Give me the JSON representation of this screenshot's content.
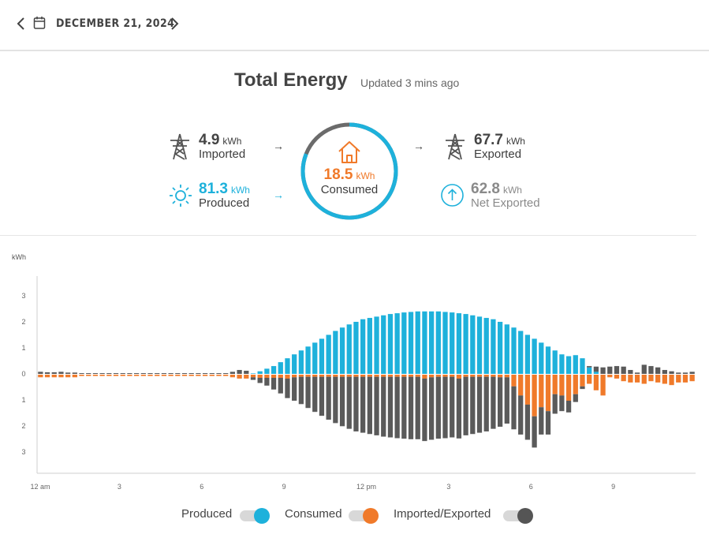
{
  "header": {
    "date": "DECEMBER 21, 2024"
  },
  "title": "Total Energy",
  "updated": "Updated 3 mins ago",
  "stats": {
    "imported": {
      "value": "4.9",
      "unit": "kWh",
      "label": "Imported"
    },
    "produced": {
      "value": "81.3",
      "unit": "kWh",
      "label": "Produced"
    },
    "consumed": {
      "value": "18.5",
      "unit": "kWh",
      "label": "Consumed"
    },
    "exported": {
      "value": "67.7",
      "unit": "kWh",
      "label": "Exported"
    },
    "net_exported": {
      "value": "62.8",
      "unit": "kWh",
      "label": "Net Exported"
    }
  },
  "ring": {
    "produced_fraction": 0.81,
    "imported_fraction": 0.19
  },
  "legend": [
    {
      "label": "Produced",
      "color": "#1eb1db"
    },
    {
      "label": "Consumed",
      "color": "#f07a2a"
    },
    {
      "label": "Imported/Exported",
      "color": "#555555"
    }
  ],
  "colors": {
    "produced": "#1eb1db",
    "consumed": "#f07a2a",
    "grid": "#5a5a5a",
    "text": "#3d3d3d"
  },
  "chart_data": {
    "type": "bar",
    "ylabel": "kWh",
    "ylim": [
      -3.8,
      3.8
    ],
    "yticks": [
      {
        "v": 3,
        "label": "3"
      },
      {
        "v": 2,
        "label": "2"
      },
      {
        "v": 1,
        "label": "1"
      },
      {
        "v": 0,
        "label": "0"
      },
      {
        "v": -1,
        "label": "1"
      },
      {
        "v": -2,
        "label": "2"
      },
      {
        "v": -3,
        "label": "3"
      }
    ],
    "xticks": [
      {
        "h": 0,
        "label": "12 am"
      },
      {
        "h": 3,
        "label": "3"
      },
      {
        "h": 6,
        "label": "6"
      },
      {
        "h": 9,
        "label": "9"
      },
      {
        "h": 12,
        "label": "12 pm"
      },
      {
        "h": 15,
        "label": "3"
      },
      {
        "h": 18,
        "label": "6"
      },
      {
        "h": 21,
        "label": "9"
      }
    ],
    "interval_minutes": 15,
    "series": [
      {
        "name": "Produced",
        "values": [
          0,
          0,
          0,
          0,
          0,
          0,
          0,
          0,
          0,
          0,
          0,
          0,
          0,
          0,
          0,
          0,
          0,
          0,
          0,
          0,
          0,
          0,
          0,
          0,
          0,
          0,
          0,
          0,
          0,
          0,
          0,
          0.02,
          0.1,
          0.2,
          0.3,
          0.45,
          0.6,
          0.75,
          0.9,
          1.05,
          1.2,
          1.35,
          1.5,
          1.65,
          1.78,
          1.9,
          2.0,
          2.1,
          2.15,
          2.2,
          2.25,
          2.3,
          2.33,
          2.36,
          2.38,
          2.4,
          2.4,
          2.4,
          2.4,
          2.38,
          2.36,
          2.33,
          2.3,
          2.25,
          2.2,
          2.15,
          2.1,
          2.0,
          1.9,
          1.78,
          1.65,
          1.5,
          1.35,
          1.2,
          1.05,
          0.9,
          0.75,
          0.68,
          0.72,
          0.6,
          0.25,
          0.08,
          0,
          0,
          0,
          0,
          0,
          0,
          0,
          0,
          0,
          0,
          0,
          0,
          0,
          0
        ]
      },
      {
        "name": "Consumed",
        "values": [
          -0.1,
          -0.1,
          -0.1,
          -0.1,
          -0.1,
          -0.1,
          -0.05,
          -0.05,
          -0.05,
          -0.05,
          -0.05,
          -0.05,
          -0.05,
          -0.05,
          -0.05,
          -0.05,
          -0.05,
          -0.05,
          -0.05,
          -0.05,
          -0.05,
          -0.05,
          -0.05,
          -0.05,
          -0.05,
          -0.05,
          -0.05,
          -0.05,
          -0.1,
          -0.15,
          -0.15,
          -0.1,
          -0.12,
          -0.12,
          -0.12,
          -0.12,
          -0.15,
          -0.1,
          -0.08,
          -0.08,
          -0.08,
          -0.08,
          -0.08,
          -0.08,
          -0.08,
          -0.08,
          -0.08,
          -0.08,
          -0.08,
          -0.08,
          -0.08,
          -0.08,
          -0.08,
          -0.08,
          -0.08,
          -0.08,
          -0.15,
          -0.1,
          -0.08,
          -0.08,
          -0.08,
          -0.15,
          -0.08,
          -0.08,
          -0.08,
          -0.08,
          -0.08,
          -0.1,
          -0.1,
          -0.45,
          -0.8,
          -1.15,
          -1.6,
          -1.25,
          -1.4,
          -0.75,
          -0.8,
          -1.0,
          -0.75,
          -0.45,
          -0.35,
          -0.6,
          -0.8,
          -0.1,
          -0.15,
          -0.25,
          -0.3,
          -0.3,
          -0.35,
          -0.25,
          -0.3,
          -0.35,
          -0.4,
          -0.3,
          -0.3,
          -0.25
        ]
      },
      {
        "name": "Imported/Exported",
        "values": [
          0.08,
          0.06,
          0.06,
          0.08,
          0.05,
          0.05,
          0.03,
          0.03,
          0.03,
          0.03,
          0.03,
          0.03,
          0.03,
          0.03,
          0.03,
          0.03,
          0.03,
          0.03,
          0.03,
          0.03,
          0.03,
          0.03,
          0.03,
          0.03,
          0.03,
          0.03,
          0.03,
          0.03,
          0.08,
          0.15,
          0.12,
          -0.1,
          -0.2,
          -0.3,
          -0.45,
          -0.6,
          -0.75,
          -0.9,
          -1.05,
          -1.2,
          -1.35,
          -1.5,
          -1.65,
          -1.78,
          -1.9,
          -2.0,
          -2.1,
          -2.15,
          -2.2,
          -2.25,
          -2.3,
          -2.33,
          -2.36,
          -2.38,
          -2.4,
          -2.4,
          -2.4,
          -2.4,
          -2.38,
          -2.36,
          -2.33,
          -2.3,
          -2.25,
          -2.2,
          -2.15,
          -2.1,
          -2.0,
          -1.9,
          -1.78,
          -1.65,
          -1.5,
          -1.35,
          -1.2,
          -1.05,
          -0.9,
          -0.75,
          -0.6,
          -0.45,
          -0.3,
          -0.1,
          0.05,
          0.2,
          0.25,
          0.28,
          0.3,
          0.28,
          0.15,
          0.05,
          0.35,
          0.3,
          0.25,
          0.15,
          0.1,
          0.05,
          0.05,
          0.08
        ]
      }
    ]
  }
}
